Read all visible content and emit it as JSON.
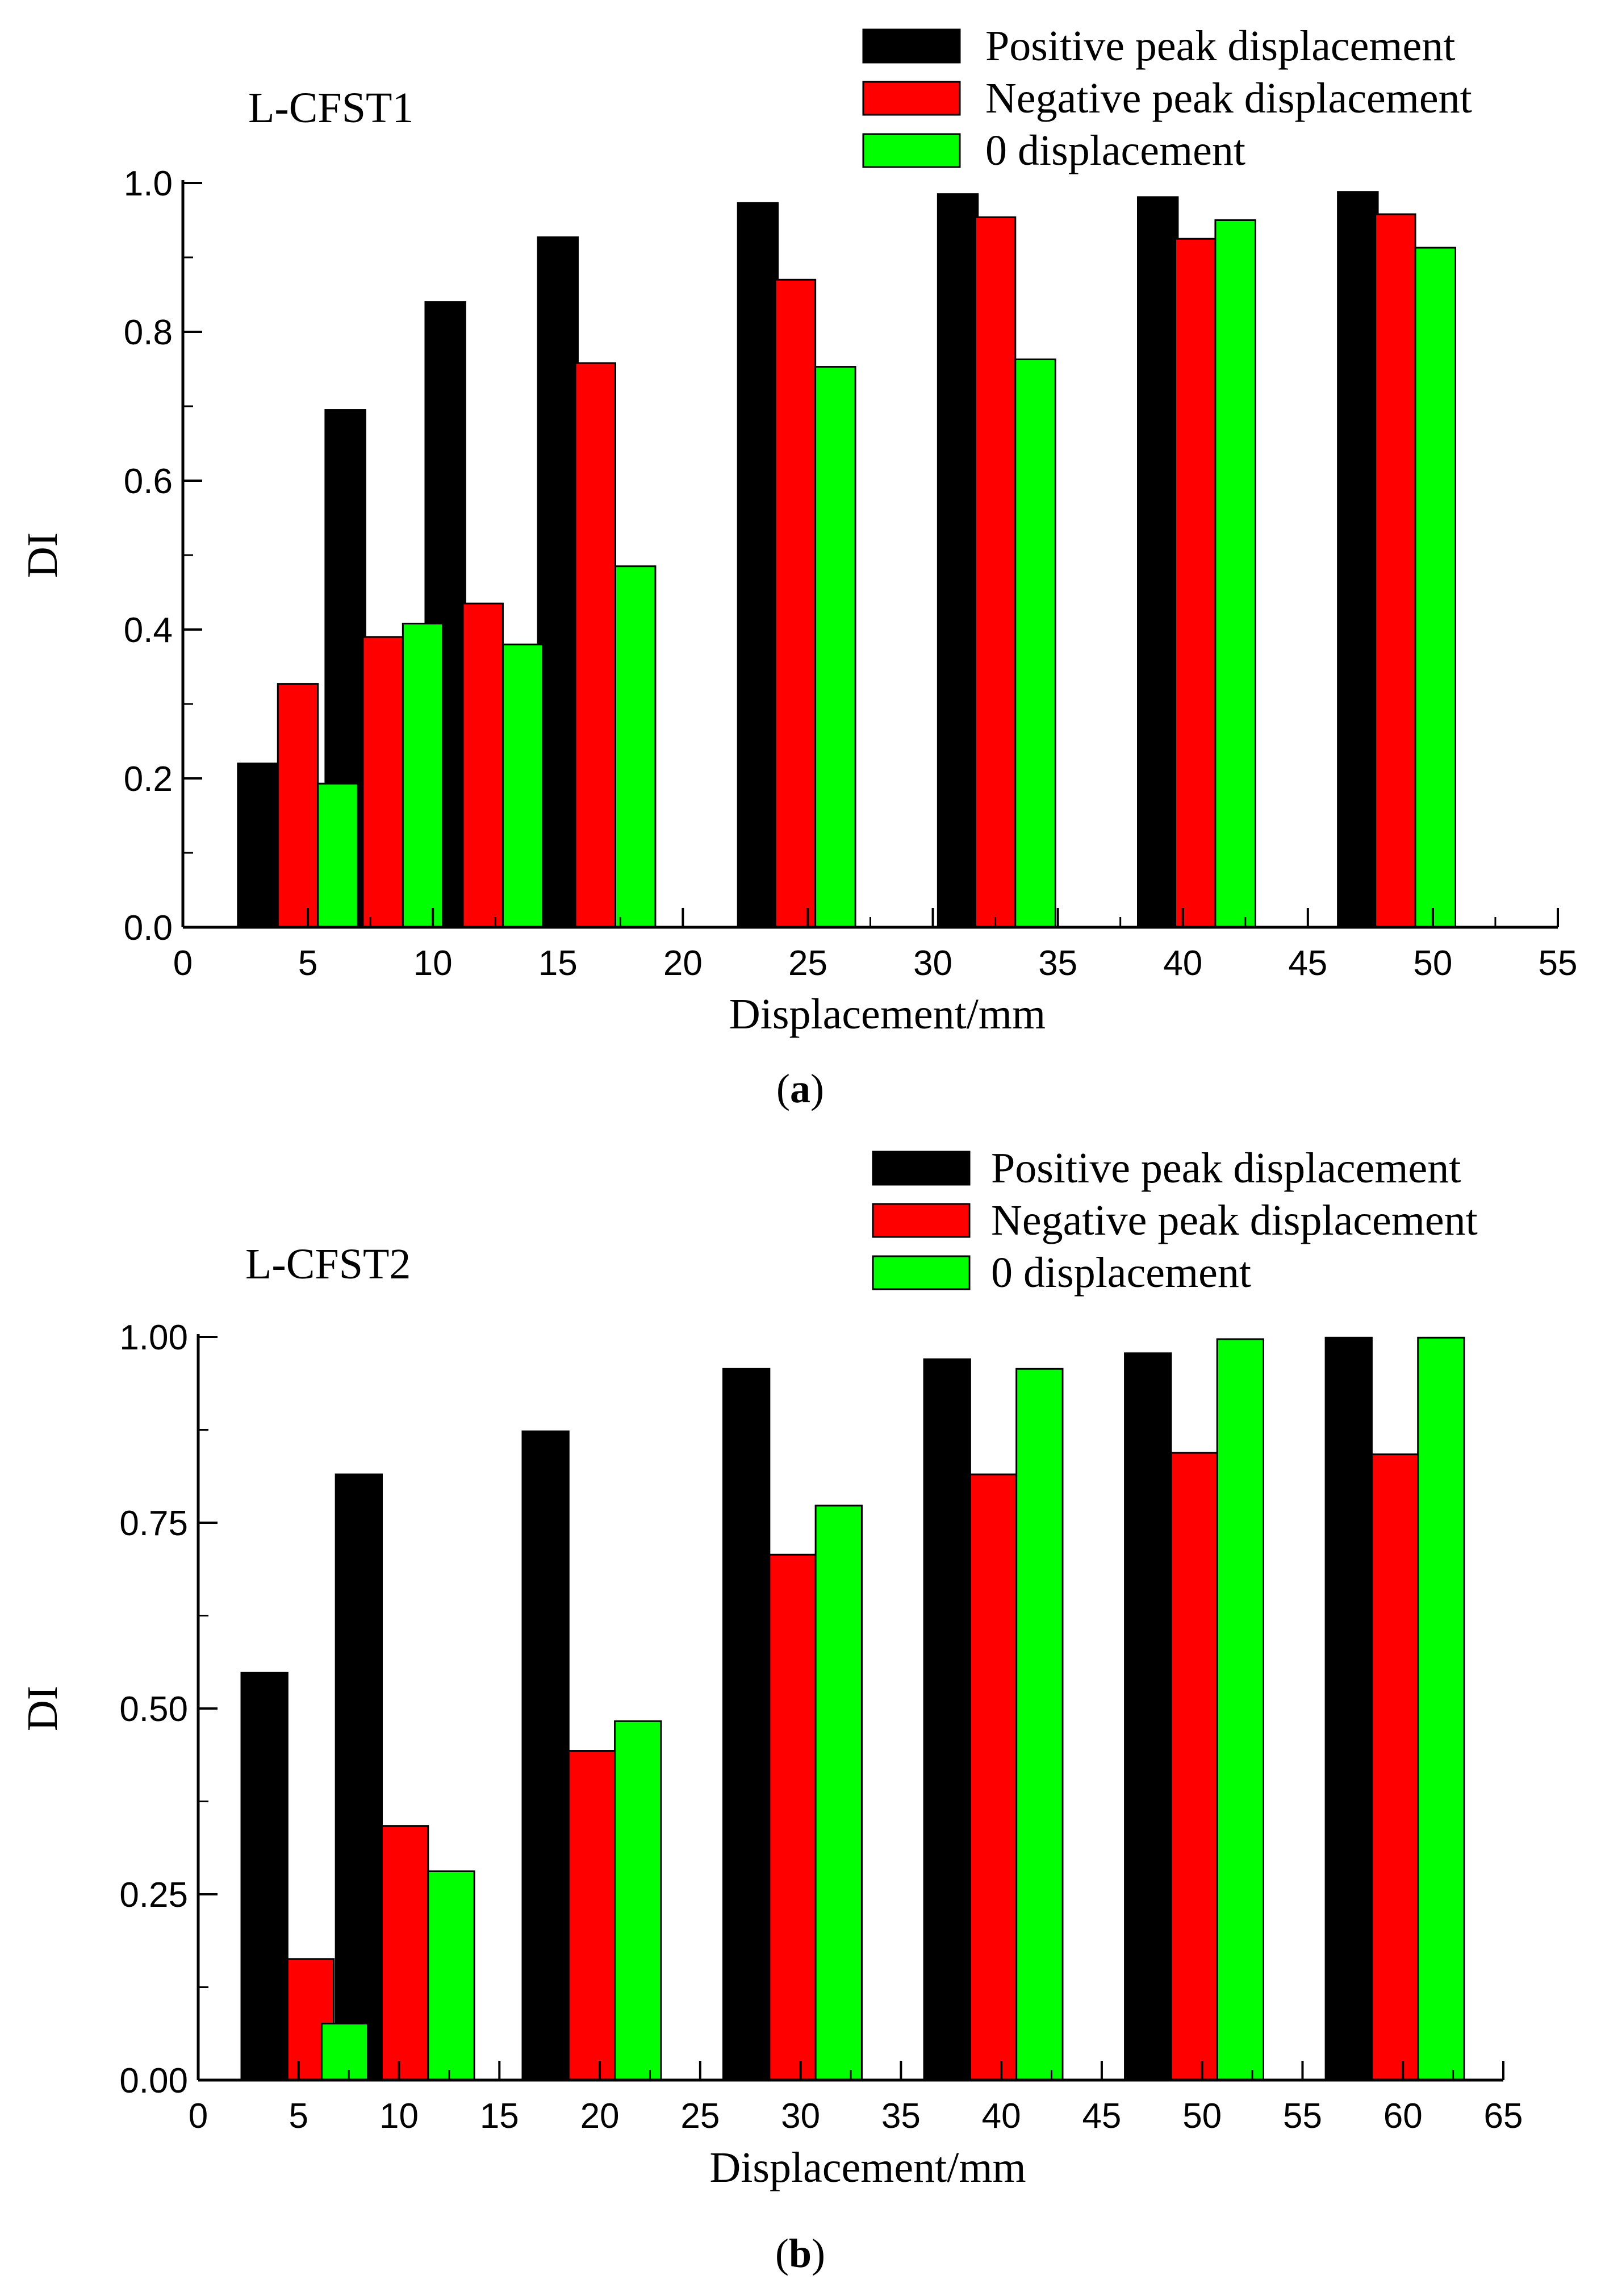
{
  "chart_data": [
    {
      "type": "bar",
      "title": "L-CFST1",
      "panel_label": "a",
      "xlabel": "Displacement/mm",
      "ylabel": "DI",
      "xlim": [
        0,
        55
      ],
      "ylim": [
        0,
        1.0
      ],
      "x_ticks": [
        0,
        5,
        10,
        15,
        20,
        25,
        30,
        35,
        40,
        45,
        50,
        55
      ],
      "y_ticks": [
        "0.0",
        "0.2",
        "0.4",
        "0.6",
        "0.8",
        "1.0"
      ],
      "bar_width": 1.6,
      "legend_position": "top-right",
      "grid": false,
      "series": [
        {
          "name": "Positive peak displacement",
          "color": "#000000",
          "points": [
            [
              3,
              0.22
            ],
            [
              6.5,
              0.695
            ],
            [
              10.5,
              0.84
            ],
            [
              15,
              0.927
            ],
            [
              23,
              0.973
            ],
            [
              31,
              0.985
            ],
            [
              39,
              0.981
            ],
            [
              47,
              0.988
            ]
          ]
        },
        {
          "name": "Negative peak displacement",
          "color": "#ff0000",
          "points": [
            [
              4.6,
              0.327
            ],
            [
              8,
              0.39
            ],
            [
              12,
              0.435
            ],
            [
              16.5,
              0.758
            ],
            [
              24.5,
              0.87
            ],
            [
              32.5,
              0.954
            ],
            [
              40.5,
              0.925
            ],
            [
              48.5,
              0.958
            ]
          ]
        },
        {
          "name": "0 displacement",
          "color": "#00ff00",
          "points": [
            [
              6.2,
              0.193
            ],
            [
              9.6,
              0.408
            ],
            [
              13.6,
              0.38
            ],
            [
              18.1,
              0.485
            ],
            [
              26.1,
              0.753
            ],
            [
              34.1,
              0.763
            ],
            [
              42.1,
              0.95
            ],
            [
              50.1,
              0.913
            ]
          ]
        }
      ]
    },
    {
      "type": "bar",
      "title": "L-CFST2",
      "panel_label": "b",
      "xlabel": "Displacement/mm",
      "ylabel": "DI",
      "xlim": [
        0,
        65
      ],
      "ylim": [
        0,
        1.0
      ],
      "x_ticks": [
        0,
        5,
        10,
        15,
        20,
        25,
        30,
        35,
        40,
        45,
        50,
        55,
        60,
        65
      ],
      "y_ticks": [
        "0.00",
        "0.25",
        "0.50",
        "0.75",
        "1.00"
      ],
      "bar_width": 2.3,
      "legend_position": "top-right",
      "grid": false,
      "series": [
        {
          "name": "Positive peak displacement",
          "color": "#000000",
          "points": [
            [
              3.3,
              0.548
            ],
            [
              8,
              0.815
            ],
            [
              17.3,
              0.873
            ],
            [
              27.3,
              0.957
            ],
            [
              37.3,
              0.97
            ],
            [
              47.3,
              0.978
            ],
            [
              57.3,
              0.999
            ]
          ]
        },
        {
          "name": "Negative peak displacement",
          "color": "#ff0000",
          "points": [
            [
              5.6,
              0.163
            ],
            [
              10.3,
              0.342
            ],
            [
              19.6,
              0.443
            ],
            [
              29.6,
              0.707
            ],
            [
              39.6,
              0.815
            ],
            [
              49.6,
              0.844
            ],
            [
              59.6,
              0.842
            ]
          ]
        },
        {
          "name": "0 displacement",
          "color": "#00ff00",
          "points": [
            [
              7.3,
              0.076
            ],
            [
              12.6,
              0.281
            ],
            [
              21.9,
              0.483
            ],
            [
              31.9,
              0.773
            ],
            [
              41.9,
              0.957
            ],
            [
              51.9,
              0.997
            ],
            [
              61.9,
              0.999
            ]
          ]
        }
      ]
    }
  ]
}
